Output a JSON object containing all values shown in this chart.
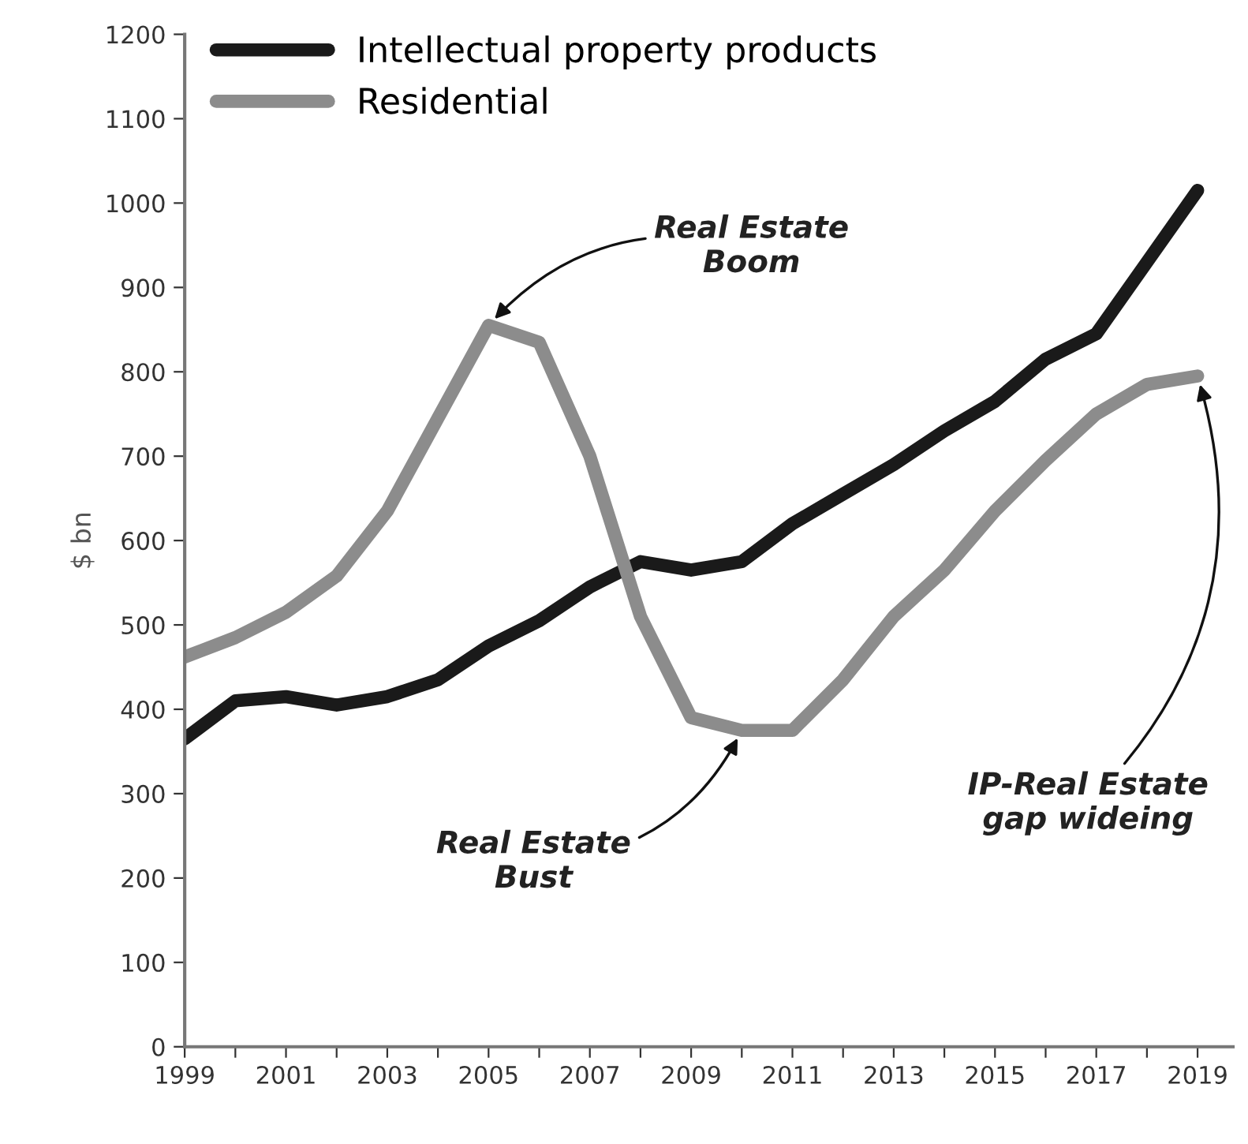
{
  "chart_data": {
    "type": "line",
    "ylabel": "$ bn",
    "x": [
      1999,
      2000,
      2001,
      2002,
      2003,
      2004,
      2005,
      2006,
      2007,
      2008,
      2009,
      2010,
      2011,
      2012,
      2013,
      2014,
      2015,
      2016,
      2017,
      2018,
      2019
    ],
    "series": [
      {
        "name": "Intellectual property products",
        "color": "#1a1a1a",
        "values": [
          365,
          410,
          415,
          405,
          415,
          435,
          475,
          505,
          545,
          575,
          565,
          575,
          620,
          655,
          690,
          730,
          765,
          815,
          845,
          930,
          1015
        ]
      },
      {
        "name": "Residential",
        "color": "#8c8c8c",
        "values": [
          462,
          485,
          515,
          558,
          635,
          745,
          855,
          835,
          700,
          510,
          390,
          375,
          375,
          435,
          510,
          565,
          635,
          695,
          750,
          785,
          795
        ]
      }
    ],
    "xlim": [
      1999,
      2019.7
    ],
    "xticks": [
      1999,
      {
        "value": 2000,
        "label": null
      },
      2001,
      {
        "value": 2002,
        "label": null
      },
      2003,
      {
        "value": 2004,
        "label": null
      },
      2005,
      {
        "value": 2006,
        "label": null
      },
      2007,
      {
        "value": 2008,
        "label": null
      },
      2009,
      {
        "value": 2010,
        "label": null
      },
      2011,
      {
        "value": 2012,
        "label": null
      },
      2013,
      {
        "value": 2014,
        "label": null
      },
      2015,
      {
        "value": 2016,
        "label": null
      },
      2017,
      {
        "value": 2018,
        "label": null
      },
      2019
    ],
    "ylim": [
      0,
      1200
    ],
    "yticks": [
      0,
      100,
      200,
      300,
      400,
      500,
      600,
      700,
      800,
      900,
      1000,
      1100,
      1200
    ],
    "annotations": [
      {
        "text": "Real Estate\nBoom",
        "x": 2005,
        "y": 855
      },
      {
        "text": "Real Estate\nBust",
        "x": 2010,
        "y": 375
      },
      {
        "text": "IP-Real Estate\ngap wideing",
        "x": 2019,
        "y": 795
      }
    ],
    "grid": false,
    "legend": "top left",
    "marker": "none",
    "line_style": "solid"
  }
}
